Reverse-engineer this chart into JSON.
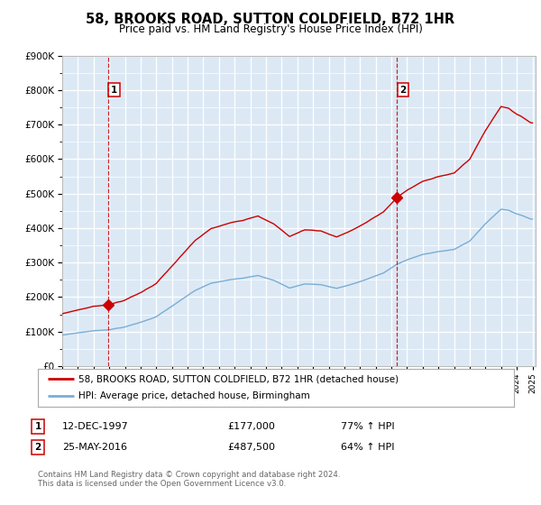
{
  "title": "58, BROOKS ROAD, SUTTON COLDFIELD, B72 1HR",
  "subtitle": "Price paid vs. HM Land Registry's House Price Index (HPI)",
  "legend_line1": "58, BROOKS ROAD, SUTTON COLDFIELD, B72 1HR (detached house)",
  "legend_line2": "HPI: Average price, detached house, Birmingham",
  "annotation1_date": "12-DEC-1997",
  "annotation1_price": "£177,000",
  "annotation1_hpi": "77% ↑ HPI",
  "annotation2_date": "25-MAY-2016",
  "annotation2_price": "£487,500",
  "annotation2_hpi": "64% ↑ HPI",
  "sale1_year": 1997.95,
  "sale1_value": 177000,
  "sale2_year": 2016.37,
  "sale2_value": 487500,
  "red_color": "#cc0000",
  "blue_color": "#7aadd4",
  "bg_color": "#dce9f5",
  "grid_color": "#ffffff",
  "ylim_max": 900000,
  "footer": "Contains HM Land Registry data © Crown copyright and database right 2024.\nThis data is licensed under the Open Government Licence v3.0."
}
